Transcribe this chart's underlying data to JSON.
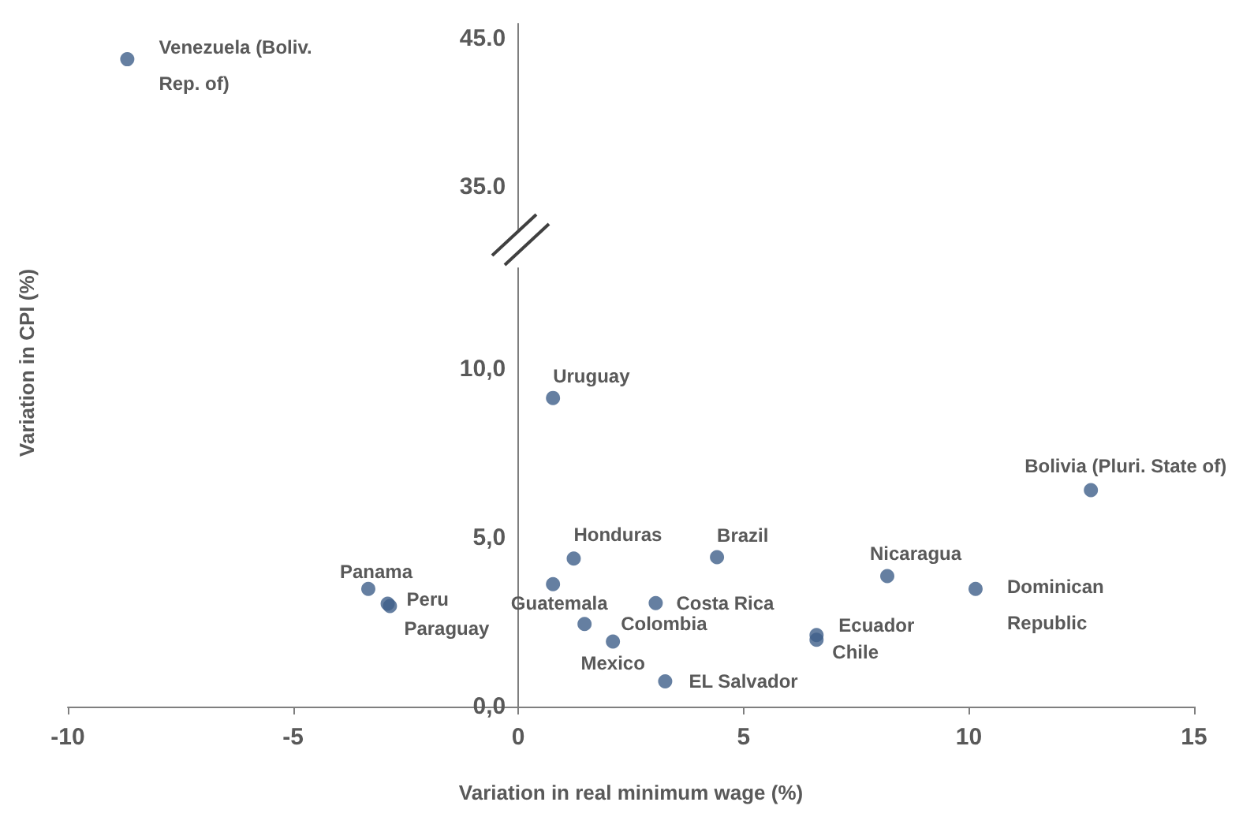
{
  "chart_data": [
    {
      "type": "scatter",
      "xlim": [
        -10,
        15
      ],
      "ylim": [
        31,
        46
      ],
      "yticks": [
        {
          "value": 35,
          "label": "35.0"
        },
        {
          "value": 45,
          "label": "45.0"
        }
      ],
      "tick_labels": "y",
      "grid": false,
      "marker": "circle",
      "series": [
        {
          "color": "#3f5f8a",
          "x": [
            -8.68
          ],
          "values": [
            43.6
          ]
        }
      ],
      "annotations": [
        {
          "text": "Venezuela (Boliv. Rep. of)",
          "x": -8.68,
          "y": 43.6
        }
      ]
    },
    {
      "type": "scatter",
      "xlabel": "Variation in real minimum wage (%)",
      "ylabel": "Variation in CPI (%)",
      "xlim": [
        -10,
        15
      ],
      "xticks": [
        -10,
        -5,
        0,
        5,
        10,
        15
      ],
      "ylim": [
        0,
        13
      ],
      "yticks": [
        {
          "value": 0,
          "label": "0,0"
        },
        {
          "value": 5,
          "label": "5,0"
        },
        {
          "value": 10,
          "label": "10,0"
        }
      ],
      "grid": false,
      "marker": "circle",
      "series": [
        {
          "color": "#3f5f8a",
          "x": [
            0.77,
            12.71,
            1.23,
            4.41,
            8.19,
            10.15,
            -3.33,
            -2.9,
            -2.85,
            0.77,
            3.05,
            1.47,
            2.1,
            6.62,
            6.62,
            3.26
          ],
          "values": [
            9.15,
            6.42,
            4.39,
            4.43,
            3.87,
            3.49,
            3.49,
            3.05,
            2.98,
            3.63,
            3.07,
            2.45,
            1.93,
            2.12,
            1.98,
            0.75
          ]
        }
      ],
      "annotations": [
        {
          "text": "Uruguay",
          "x": 0.77,
          "y": 9.15
        },
        {
          "text": "Bolivia (Pluri. State of)",
          "x": 12.71,
          "y": 6.42
        },
        {
          "text": "Honduras",
          "x": 1.23,
          "y": 4.39
        },
        {
          "text": "Brazil",
          "x": 4.41,
          "y": 4.43
        },
        {
          "text": "Nicaragua",
          "x": 8.19,
          "y": 3.87
        },
        {
          "text": "Dominican Republic",
          "x": 10.15,
          "y": 3.49
        },
        {
          "text": "Panama",
          "x": -3.33,
          "y": 3.49
        },
        {
          "text": "Peru",
          "x": -2.9,
          "y": 3.05
        },
        {
          "text": "Paraguay",
          "x": -2.85,
          "y": 2.98
        },
        {
          "text": "Guatemala",
          "x": 0.77,
          "y": 3.63
        },
        {
          "text": "Costa Rica",
          "x": 3.05,
          "y": 3.07
        },
        {
          "text": "Colombia",
          "x": 1.47,
          "y": 2.45
        },
        {
          "text": "Mexico",
          "x": 2.1,
          "y": 1.93
        },
        {
          "text": "Ecuador",
          "x": 6.62,
          "y": 2.12
        },
        {
          "text": "Chile",
          "x": 6.62,
          "y": 1.98
        },
        {
          "text": "EL Salvador",
          "x": 3.26,
          "y": 0.75
        }
      ]
    }
  ]
}
